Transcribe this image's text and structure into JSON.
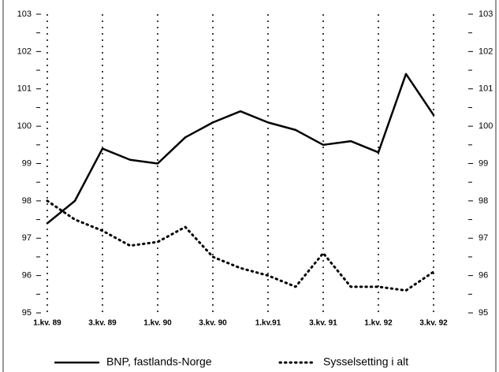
{
  "chart_data": {
    "type": "line",
    "categories": [
      "1.kv. 89",
      null,
      "3.kv. 89",
      null,
      "1.kv. 90",
      null,
      "3.kv. 90",
      null,
      "1.kv.91",
      null,
      "3.kv. 91",
      null,
      "1.kv. 92",
      null,
      "3.kv. 92"
    ],
    "series": [
      {
        "name": "BNP, fastlands-Norge",
        "color": "#000000",
        "style": "solid",
        "values": [
          97.4,
          98.0,
          99.4,
          99.1,
          99.0,
          99.7,
          100.1,
          100.4,
          100.1,
          99.9,
          99.5,
          99.6,
          99.3,
          101.4,
          100.3
        ]
      },
      {
        "name": "Sysselsetting i alt",
        "color": "#000000",
        "style": "dotted",
        "values": [
          98.0,
          97.5,
          97.2,
          96.8,
          96.9,
          97.3,
          96.5,
          96.2,
          96.0,
          95.7,
          96.6,
          95.7,
          95.7,
          95.6,
          96.1
        ]
      }
    ],
    "ylim": [
      95,
      103
    ],
    "yticks": [
      95,
      96,
      97,
      98,
      99,
      100,
      101,
      102,
      103
    ],
    "minor_yticks": [
      95.5,
      96.5,
      97.5,
      98.5,
      99.5,
      100.5,
      101.5,
      102.5
    ],
    "y2lim": [
      95,
      103
    ],
    "y2ticks": [
      95,
      96,
      97,
      98,
      99,
      100,
      101,
      102,
      103
    ],
    "vertical_grid": "dotted",
    "legend": "bottom"
  }
}
